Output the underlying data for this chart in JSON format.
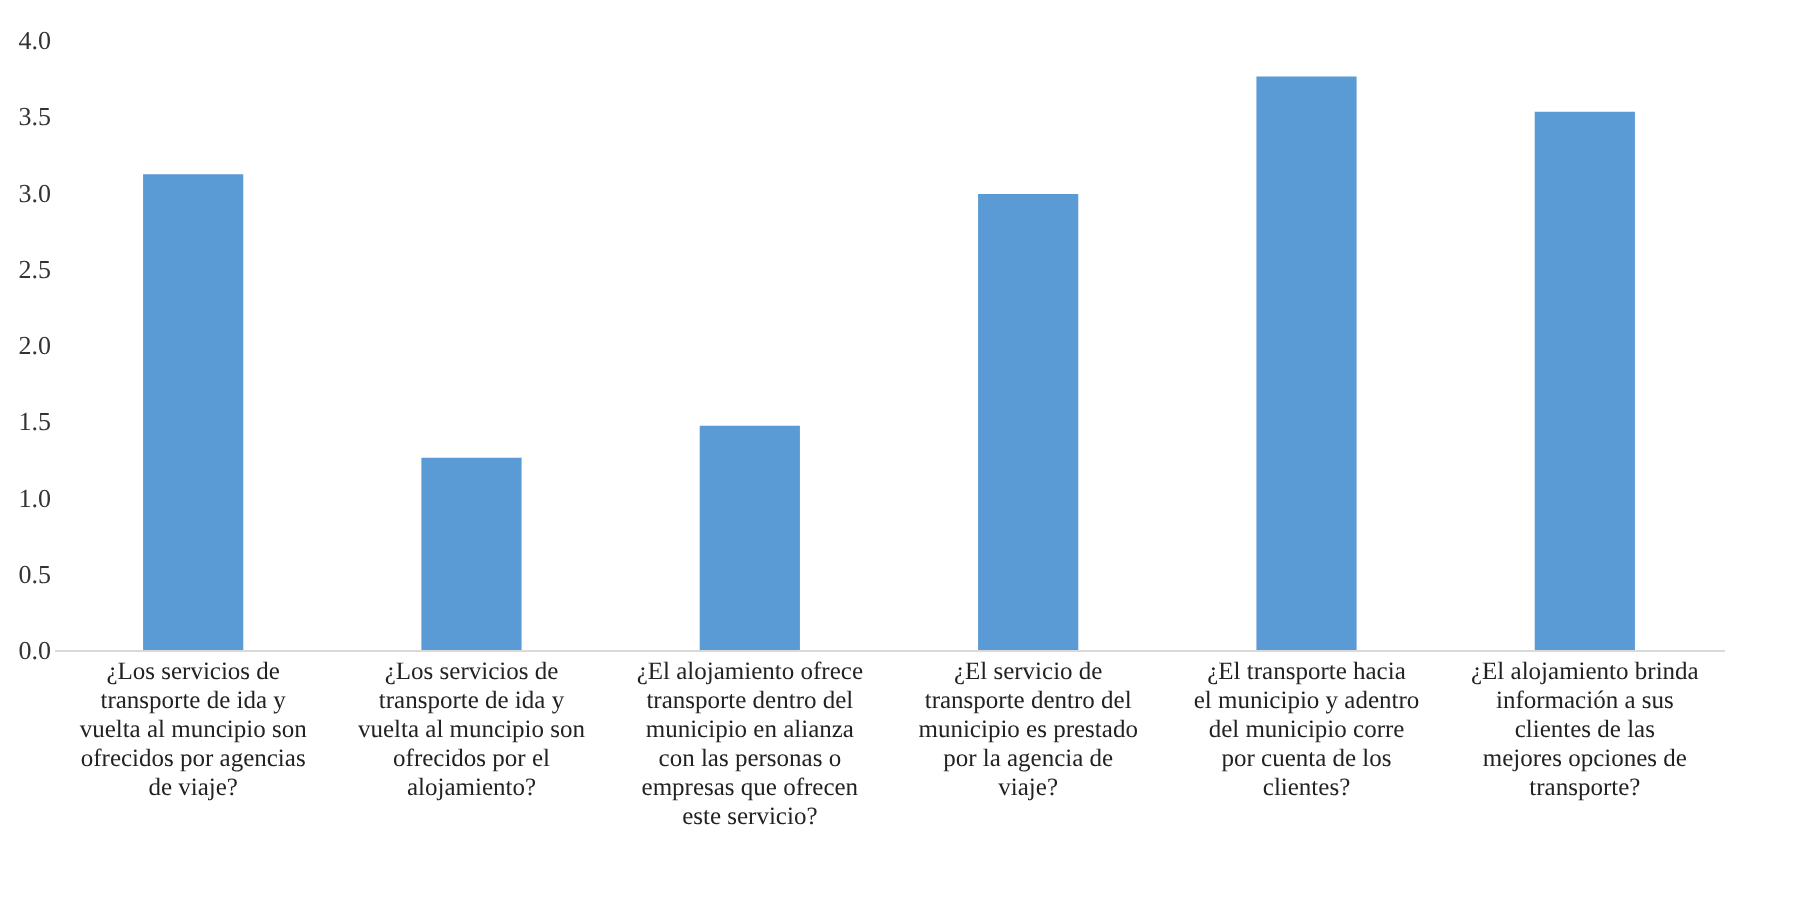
{
  "chart_data": {
    "type": "bar",
    "categories": [
      "¿Los servicios de transporte de ida y vuelta al muncipio son ofrecidos por agencias de viaje?",
      "¿Los servicios de transporte de ida y vuelta al muncipio son ofrecidos por el alojamiento?",
      "¿El alojamiento ofrece transporte dentro del municipio en alianza con las personas o empresas que ofrecen este servicio?",
      "¿El servicio de transporte dentro del municipio es prestado por la agencia de viaje?",
      "¿El transporte hacia el municipio y adentro del municipio corre por cuenta de los clientes?",
      "¿El alojamiento brinda información a sus clientes de las mejores opciones de transporte?"
    ],
    "values": [
      3.12,
      1.26,
      1.47,
      2.99,
      3.76,
      3.53
    ],
    "color": "#5b9bd5",
    "ylim": [
      0,
      4
    ],
    "yticks": [
      {
        "value": 0,
        "label": "0.0"
      },
      {
        "value": 0.5,
        "label": "0.5"
      },
      {
        "value": 1,
        "label": "1.0"
      },
      {
        "value": 1.5,
        "label": "1.5"
      },
      {
        "value": 2,
        "label": "2.0"
      },
      {
        "value": 2.5,
        "label": "2.5"
      },
      {
        "value": 3,
        "label": "3.0"
      },
      {
        "value": 3.5,
        "label": "3.5"
      },
      {
        "value": 4,
        "label": "4.0"
      }
    ],
    "grid": false
  }
}
